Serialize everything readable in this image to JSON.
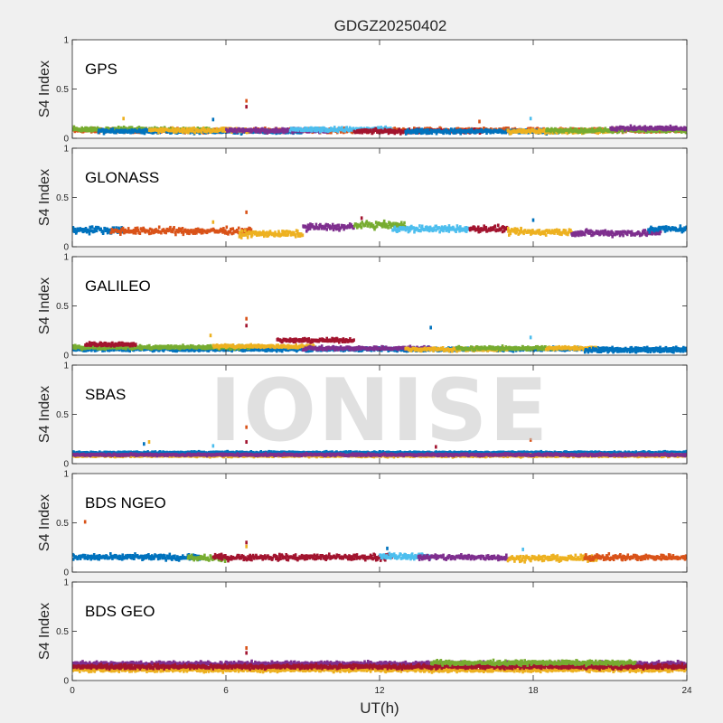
{
  "figure": {
    "title": "GDGZ20250402",
    "xlabel": "UT(h)",
    "watermark": "IONISE"
  },
  "chart_data": {
    "type": "scatter",
    "title": "GDGZ20250402",
    "xlabel": "UT(h)",
    "ylabel": "S4 Index",
    "xlim": [
      0,
      24
    ],
    "ylim": [
      0,
      1
    ],
    "xticks": [
      "0",
      "6",
      "12",
      "18",
      "24"
    ],
    "yticks": [
      "0",
      "0.5",
      "1"
    ],
    "grid": false,
    "panels": [
      {
        "label": "GPS",
        "base": 0.08,
        "spread": 0.03,
        "segments": [
          {
            "color": "#D95319",
            "x0": 0.0,
            "x1": 24.0,
            "level": 0.08
          },
          {
            "color": "#77AC30",
            "x0": 0.0,
            "x1": 5.5,
            "level": 0.09
          },
          {
            "color": "#0072BD",
            "x0": 1.0,
            "x1": 9.0,
            "level": 0.07
          },
          {
            "color": "#EDB120",
            "x0": 3.0,
            "x1": 7.0,
            "level": 0.08
          },
          {
            "color": "#7E2F8E",
            "x0": 6.0,
            "x1": 10.0,
            "level": 0.08
          },
          {
            "color": "#4DBEEE",
            "x0": 8.5,
            "x1": 12.5,
            "level": 0.09
          },
          {
            "color": "#A2142F",
            "x0": 11.0,
            "x1": 16.0,
            "level": 0.07
          },
          {
            "color": "#0072BD",
            "x0": 13.0,
            "x1": 19.0,
            "level": 0.07
          },
          {
            "color": "#EDB120",
            "x0": 17.0,
            "x1": 21.0,
            "level": 0.07
          },
          {
            "color": "#77AC30",
            "x0": 18.5,
            "x1": 24.0,
            "level": 0.08
          },
          {
            "color": "#7E2F8E",
            "x0": 21.0,
            "x1": 24.0,
            "level": 0.1
          }
        ],
        "outliers": [
          [
            6.8,
            0.38
          ],
          [
            6.8,
            0.32
          ],
          [
            2.0,
            0.2
          ],
          [
            5.5,
            0.19
          ],
          [
            17.9,
            0.2
          ],
          [
            15.9,
            0.17
          ]
        ]
      },
      {
        "label": "GLONASS",
        "base": 0.16,
        "spread": 0.045,
        "segments": [
          {
            "color": "#0072BD",
            "x0": 0.0,
            "x1": 2.0,
            "level": 0.17
          },
          {
            "color": "#D95319",
            "x0": 1.5,
            "x1": 7.0,
            "level": 0.16
          },
          {
            "color": "#EDB120",
            "x0": 6.5,
            "x1": 9.0,
            "level": 0.13
          },
          {
            "color": "#7E2F8E",
            "x0": 9.0,
            "x1": 11.0,
            "level": 0.2
          },
          {
            "color": "#77AC30",
            "x0": 11.0,
            "x1": 13.0,
            "level": 0.22
          },
          {
            "color": "#4DBEEE",
            "x0": 12.5,
            "x1": 15.5,
            "level": 0.18
          },
          {
            "color": "#A2142F",
            "x0": 15.5,
            "x1": 17.0,
            "level": 0.18
          },
          {
            "color": "#EDB120",
            "x0": 17.0,
            "x1": 19.5,
            "level": 0.15
          },
          {
            "color": "#7E2F8E",
            "x0": 19.5,
            "x1": 23.0,
            "level": 0.14
          },
          {
            "color": "#0072BD",
            "x0": 22.5,
            "x1": 24.0,
            "level": 0.18
          }
        ],
        "outliers": [
          [
            6.8,
            0.35
          ],
          [
            11.3,
            0.29
          ],
          [
            5.5,
            0.25
          ],
          [
            18.0,
            0.27
          ]
        ]
      },
      {
        "label": "GALILEO",
        "base": 0.07,
        "spread": 0.025,
        "segments": [
          {
            "color": "#0072BD",
            "x0": 0.0,
            "x1": 24.0,
            "level": 0.06
          },
          {
            "color": "#77AC30",
            "x0": 0.0,
            "x1": 7.0,
            "level": 0.08
          },
          {
            "color": "#A2142F",
            "x0": 0.5,
            "x1": 2.5,
            "level": 0.11
          },
          {
            "color": "#EDB120",
            "x0": 5.5,
            "x1": 9.5,
            "level": 0.09
          },
          {
            "color": "#A2142F",
            "x0": 8.0,
            "x1": 11.0,
            "level": 0.15
          },
          {
            "color": "#7E2F8E",
            "x0": 9.0,
            "x1": 14.0,
            "level": 0.07
          },
          {
            "color": "#EDB120",
            "x0": 13.0,
            "x1": 17.0,
            "level": 0.06
          },
          {
            "color": "#77AC30",
            "x0": 15.0,
            "x1": 19.0,
            "level": 0.07
          },
          {
            "color": "#EDB120",
            "x0": 18.5,
            "x1": 20.5,
            "level": 0.07
          },
          {
            "color": "#0072BD",
            "x0": 20.0,
            "x1": 24.0,
            "level": 0.05
          }
        ],
        "outliers": [
          [
            6.8,
            0.37
          ],
          [
            6.8,
            0.3
          ],
          [
            5.4,
            0.2
          ],
          [
            14.0,
            0.28
          ],
          [
            17.9,
            0.18
          ]
        ]
      },
      {
        "label": "SBAS",
        "base": 0.1,
        "spread": 0.015,
        "segments": [
          {
            "color": "#4DBEEE",
            "x0": 0.0,
            "x1": 24.0,
            "level": 0.1
          },
          {
            "color": "#0072BD",
            "x0": 0.0,
            "x1": 24.0,
            "level": 0.11
          },
          {
            "color": "#EDB120",
            "x0": 0.0,
            "x1": 24.0,
            "level": 0.08
          },
          {
            "color": "#7E2F8E",
            "x0": 0.0,
            "x1": 24.0,
            "level": 0.09
          }
        ],
        "outliers": [
          [
            6.8,
            0.37
          ],
          [
            6.8,
            0.22
          ],
          [
            3.0,
            0.22
          ],
          [
            2.8,
            0.2
          ],
          [
            5.5,
            0.18
          ],
          [
            17.9,
            0.24
          ],
          [
            14.2,
            0.17
          ]
        ]
      },
      {
        "label": "BDS NGEO",
        "base": 0.15,
        "spread": 0.04,
        "segments": [
          {
            "color": "#0072BD",
            "x0": 0.0,
            "x1": 5.0,
            "level": 0.15
          },
          {
            "color": "#77AC30",
            "x0": 4.5,
            "x1": 6.0,
            "level": 0.14
          },
          {
            "color": "#A2142F",
            "x0": 5.5,
            "x1": 12.5,
            "level": 0.15
          },
          {
            "color": "#4DBEEE",
            "x0": 12.0,
            "x1": 14.0,
            "level": 0.16
          },
          {
            "color": "#7E2F8E",
            "x0": 13.5,
            "x1": 17.0,
            "level": 0.15
          },
          {
            "color": "#EDB120",
            "x0": 17.0,
            "x1": 20.5,
            "level": 0.14
          },
          {
            "color": "#D95319",
            "x0": 20.0,
            "x1": 24.0,
            "level": 0.15
          }
        ],
        "outliers": [
          [
            0.5,
            0.51
          ],
          [
            6.8,
            0.3
          ],
          [
            6.8,
            0.26
          ],
          [
            12.3,
            0.24
          ],
          [
            17.6,
            0.23
          ]
        ]
      },
      {
        "label": "BDS GEO",
        "base": 0.16,
        "spread": 0.03,
        "segments": [
          {
            "color": "#7E2F8E",
            "x0": 0.0,
            "x1": 24.0,
            "level": 0.17
          },
          {
            "color": "#EDB120",
            "x0": 0.0,
            "x1": 24.0,
            "level": 0.11
          },
          {
            "color": "#A2142F",
            "x0": 0.0,
            "x1": 24.0,
            "level": 0.14
          },
          {
            "color": "#77AC30",
            "x0": 14.0,
            "x1": 22.0,
            "level": 0.18
          }
        ],
        "outliers": [
          [
            6.8,
            0.33
          ],
          [
            6.8,
            0.28
          ]
        ]
      }
    ]
  }
}
